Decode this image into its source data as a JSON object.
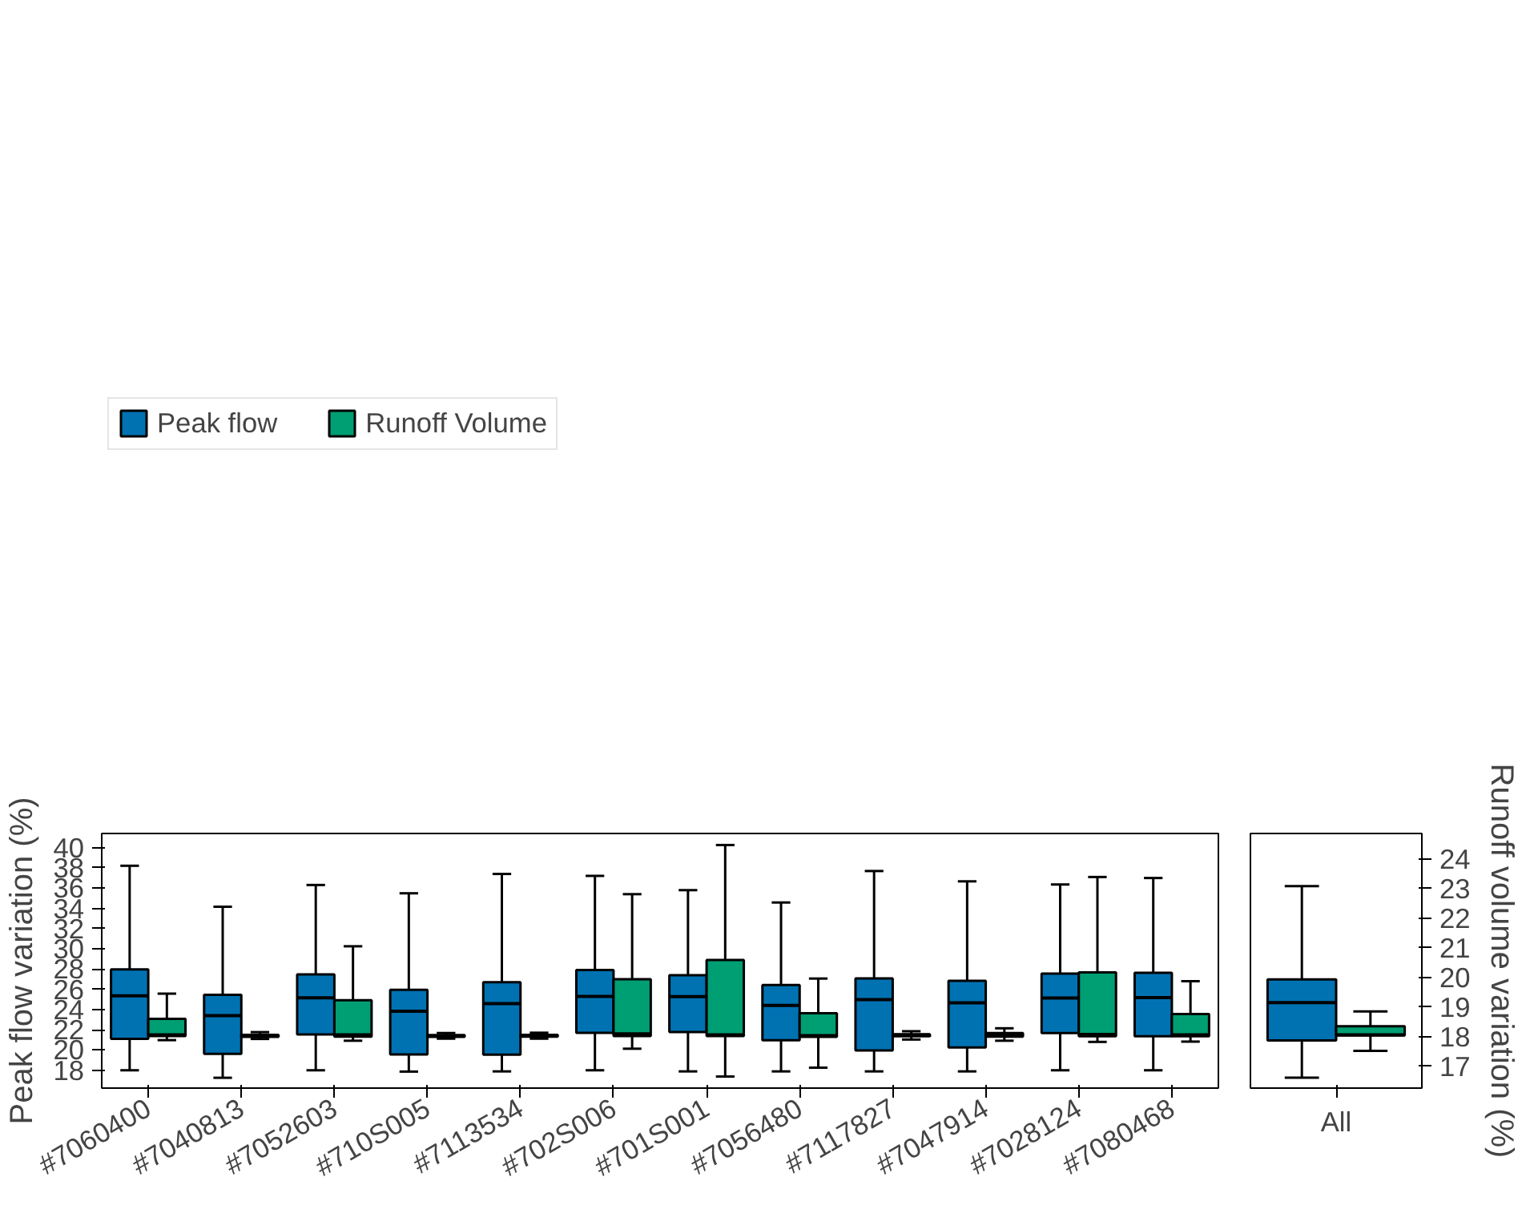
{
  "chart_data": [
    {
      "type": "box",
      "categories": [
        "#7060400",
        "#7040813",
        "#7052603",
        "#710S005",
        "#7113534",
        "#702S006",
        "#701S001",
        "#7056480",
        "#7117827",
        "#7047914",
        "#7028124",
        "#7080468"
      ],
      "ylabel": "Peak flow variation (%)",
      "ylim": [
        16.24,
        41.4
      ],
      "yticks": [
        18,
        20,
        22,
        24,
        26,
        28,
        30,
        32,
        34,
        36,
        38,
        40
      ],
      "y2lim": [
        16.26,
        24.86
      ],
      "tick_labels": [
        "x",
        "y"
      ],
      "legend": "top",
      "grid": false,
      "series": [
        {
          "name": "Peak flow",
          "color": "#0072b2",
          "boxes": [
            {
              "low": 18.0,
              "q1": 21.11,
              "median": 25.35,
              "q3": 27.96,
              "high": 38.21
            },
            {
              "low": 17.26,
              "q1": 19.62,
              "median": 23.4,
              "q3": 25.46,
              "high": 34.16
            },
            {
              "low": 18.0,
              "q1": 21.55,
              "median": 25.16,
              "q3": 27.47,
              "high": 36.31
            },
            {
              "low": 17.87,
              "q1": 19.57,
              "median": 23.83,
              "q3": 25.95,
              "high": 35.49
            },
            {
              "low": 17.89,
              "q1": 19.54,
              "median": 24.59,
              "q3": 26.7,
              "high": 37.4
            },
            {
              "low": 18.0,
              "q1": 21.7,
              "median": 25.3,
              "q3": 27.92,
              "high": 37.21
            },
            {
              "low": 17.89,
              "q1": 21.77,
              "median": 25.27,
              "q3": 27.39,
              "high": 35.8
            },
            {
              "low": 17.89,
              "q1": 20.96,
              "median": 24.4,
              "q3": 26.43,
              "high": 34.58
            },
            {
              "low": 17.89,
              "q1": 19.95,
              "median": 24.99,
              "q3": 27.08,
              "high": 37.69
            },
            {
              "low": 17.89,
              "q1": 20.25,
              "median": 24.67,
              "q3": 26.84,
              "high": 36.67
            },
            {
              "low": 18.0,
              "q1": 21.67,
              "median": 25.14,
              "q3": 27.55,
              "high": 36.36
            },
            {
              "low": 18.0,
              "q1": 21.36,
              "median": 25.19,
              "q3": 27.63,
              "high": 37.0
            }
          ]
        },
        {
          "name": "Runoff Volume",
          "color": "#009e73",
          "axis": "y2",
          "boxes": [
            {
              "low": 17.88,
              "q1": 18.02,
              "median": 18.06,
              "q3": 18.6,
              "high": 19.45
            },
            {
              "low": 17.92,
              "q1": 17.99,
              "median": 18.02,
              "q3": 18.06,
              "high": 18.15
            },
            {
              "low": 17.86,
              "q1": 18.0,
              "median": 18.06,
              "q3": 19.23,
              "high": 21.05
            },
            {
              "low": 17.93,
              "q1": 17.99,
              "median": 18.02,
              "q3": 18.05,
              "high": 18.12
            },
            {
              "low": 17.93,
              "q1": 18.0,
              "median": 18.03,
              "q3": 18.06,
              "high": 18.13
            },
            {
              "low": 17.59,
              "q1": 18.02,
              "median": 18.09,
              "q3": 19.94,
              "high": 22.81
            },
            {
              "low": 16.65,
              "q1": 18.02,
              "median": 18.06,
              "q3": 20.59,
              "high": 24.47
            },
            {
              "low": 16.95,
              "q1": 17.99,
              "median": 18.03,
              "q3": 18.79,
              "high": 19.96
            },
            {
              "low": 17.9,
              "q1": 18.01,
              "median": 18.05,
              "q3": 18.08,
              "high": 18.18
            },
            {
              "low": 17.86,
              "q1": 18.0,
              "median": 18.06,
              "q3": 18.12,
              "high": 18.28
            },
            {
              "low": 17.82,
              "q1": 18.01,
              "median": 18.07,
              "q3": 20.17,
              "high": 23.39
            },
            {
              "low": 17.83,
              "q1": 18.01,
              "median": 18.06,
              "q3": 18.76,
              "high": 19.87
            }
          ]
        }
      ]
    },
    {
      "type": "box",
      "categories": [
        "All"
      ],
      "y2label": "Runoff volume variation (%)",
      "ylim": [
        16.24,
        41.4
      ],
      "y2lim": [
        16.26,
        24.86
      ],
      "y2ticks": [
        17,
        18,
        19,
        20,
        21,
        22,
        23,
        24
      ],
      "tick_labels": [
        "x",
        "y2"
      ],
      "grid": false,
      "series": [
        {
          "color": "#0072b2",
          "boxes": [
            {
              "low": 17.27,
              "q1": 20.95,
              "median": 24.68,
              "q3": 26.98,
              "high": 36.2
            }
          ]
        },
        {
          "color": "#009e73",
          "axis": "y2",
          "boxes": [
            {
              "low": 17.52,
              "q1": 18.04,
              "median": 18.06,
              "q3": 18.35,
              "high": 18.85
            }
          ]
        }
      ]
    }
  ]
}
